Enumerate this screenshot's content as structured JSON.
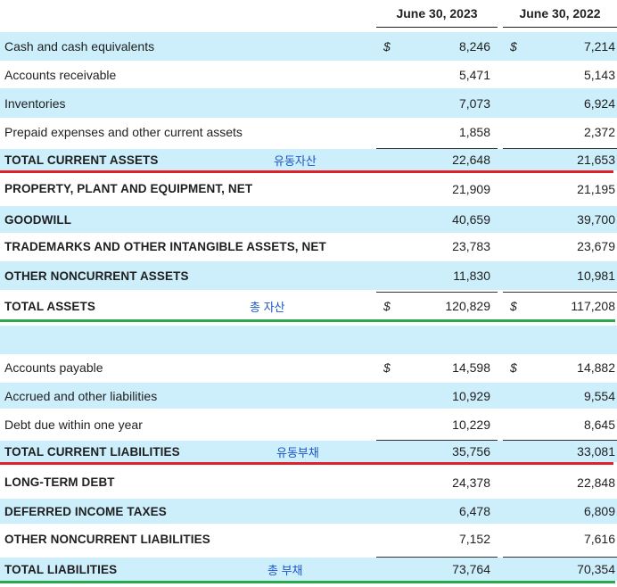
{
  "header": {
    "col1": "June 30, 2023",
    "col2": "June 30, 2022"
  },
  "currency_symbol": "$",
  "colors": {
    "row_blue": "#cdeefb",
    "red_underline": "#e0202a",
    "green_underline": "#2aa84a",
    "note": "#1a56c9"
  },
  "rows": [
    {
      "label": "Cash and cash equivalents",
      "v2023": "8,246",
      "v2022": "7,214",
      "currency": true
    },
    {
      "label": "Accounts receivable",
      "v2023": "5,471",
      "v2022": "5,143"
    },
    {
      "label": "Inventories",
      "v2023": "7,073",
      "v2022": "6,924"
    },
    {
      "label": "Prepaid expenses and other current assets",
      "v2023": "1,858",
      "v2022": "2,372"
    },
    {
      "label": "TOTAL CURRENT ASSETS",
      "note": "유동자산",
      "v2023": "22,648",
      "v2022": "21,653"
    },
    {
      "label": "PROPERTY, PLANT AND EQUIPMENT, NET",
      "v2023": "21,909",
      "v2022": "21,195"
    },
    {
      "label": "GOODWILL",
      "v2023": "40,659",
      "v2022": "39,700"
    },
    {
      "label": "TRADEMARKS AND OTHER INTANGIBLE ASSETS, NET",
      "v2023": "23,783",
      "v2022": "23,679"
    },
    {
      "label": "OTHER NONCURRENT ASSETS",
      "v2023": "11,830",
      "v2022": "10,981"
    },
    {
      "label": "TOTAL ASSETS",
      "note": "총 자산",
      "v2023": "120,829",
      "v2022": "117,208",
      "currency": true
    },
    {
      "label": "",
      "v2023": "",
      "v2022": ""
    },
    {
      "label": "Accounts payable",
      "v2023": "14,598",
      "v2022": "14,882",
      "currency": true
    },
    {
      "label": "Accrued and other liabilities",
      "v2023": "10,929",
      "v2022": "9,554"
    },
    {
      "label": "Debt due within one year",
      "v2023": "10,229",
      "v2022": "8,645"
    },
    {
      "label": "TOTAL CURRENT LIABILITIES",
      "note": "유동부채",
      "v2023": "35,756",
      "v2022": "33,081"
    },
    {
      "label": "LONG-TERM DEBT",
      "v2023": "24,378",
      "v2022": "22,848"
    },
    {
      "label": "DEFERRED INCOME TAXES",
      "v2023": "6,478",
      "v2022": "6,809"
    },
    {
      "label": "OTHER NONCURRENT LIABILITIES",
      "v2023": "7,152",
      "v2022": "7,616"
    },
    {
      "label": "TOTAL LIABILITIES",
      "note": "총 부채",
      "v2023": "73,764",
      "v2022": "70,354"
    }
  ]
}
